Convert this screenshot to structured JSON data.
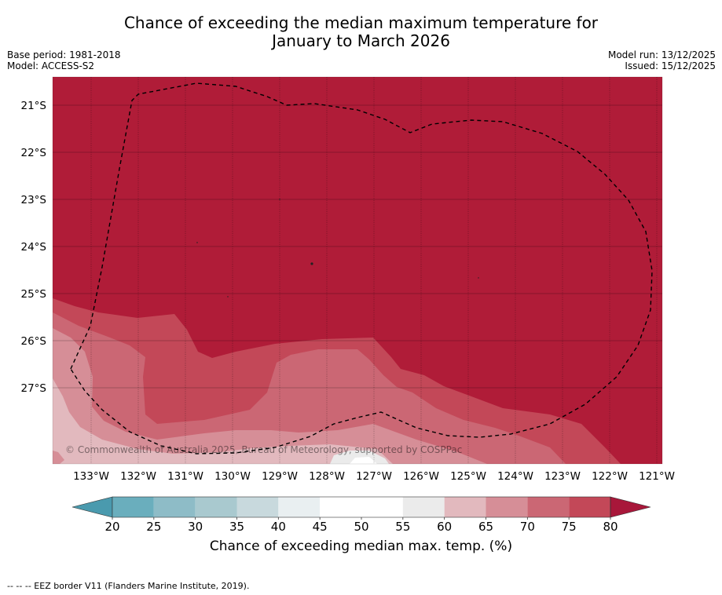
{
  "title": {
    "line1": "Chance of exceeding the median maximum temperature for",
    "line2": "January to March 2026"
  },
  "meta": {
    "base_period": "Base period: 1981-2018",
    "model": "Model: ACCESS-S2",
    "model_run": "Model run: 13/12/2025",
    "issued": "Issued: 15/12/2025"
  },
  "map": {
    "lat_labels": [
      "21°S",
      "22°S",
      "23°S",
      "24°S",
      "25°S",
      "26°S",
      "27°S"
    ],
    "lon_labels": [
      "133°W",
      "132°W",
      "131°W",
      "130°W",
      "129°W",
      "128°W",
      "127°W",
      "126°W",
      "125°W",
      "124°W",
      "123°W",
      "122°W",
      "121°W"
    ],
    "copyright": "© Commonwealth of Australia 2025, Bureau of Meteorology, supported by COSPPac",
    "colors": {
      "c80": "#b01c38",
      "c75": "#c34858",
      "c70": "#cb6774",
      "c65": "#d68e97",
      "c60": "#e2b9be",
      "c55": "#ebebeb",
      "c50": "#ffffff"
    }
  },
  "colorbar": {
    "ticks": [
      "20",
      "25",
      "30",
      "35",
      "40",
      "45",
      "50",
      "55",
      "60",
      "65",
      "70",
      "75",
      "80"
    ],
    "colors": [
      "#6aaebd",
      "#8ebcc7",
      "#a9c9cf",
      "#c8d9dd",
      "#e9eff1",
      "#ffffff",
      "#ffffff",
      "#ebebeb",
      "#e2b9be",
      "#d68e97",
      "#cb6774",
      "#c34858"
    ],
    "under_color": "#4a9aae",
    "over_color": "#a8173a",
    "label": "Chance of exceeding median max. temp. (%)"
  },
  "footer": "--  --  -- EEZ border V11 (Flanders Marine Institute, 2019)."
}
